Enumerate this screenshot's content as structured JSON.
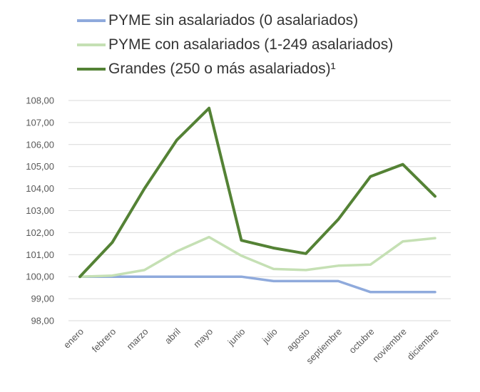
{
  "chart_data": {
    "type": "line",
    "categories": [
      "enero",
      "febrero",
      "marzo",
      "abril",
      "mayo",
      "junio",
      "julio",
      "agosto",
      "septiembre",
      "octubre",
      "noviembre",
      "diciembre"
    ],
    "series": [
      {
        "name": "PYME sin asalariados (0 asalariados)",
        "color": "#8faadc",
        "values": [
          100.0,
          100.0,
          100.0,
          100.0,
          100.0,
          100.0,
          99.8,
          99.8,
          99.8,
          99.3,
          99.3,
          99.3
        ]
      },
      {
        "name": "PYME con asalariados (1-249 asalariados)",
        "color": "#c5e0b4",
        "values": [
          100.0,
          100.05,
          100.3,
          101.15,
          101.8,
          100.95,
          100.35,
          100.3,
          100.5,
          100.55,
          101.6,
          101.75
        ]
      },
      {
        "name": "Grandes (250 o más asalariados)¹",
        "color": "#548235",
        "values": [
          100.0,
          101.55,
          104.0,
          106.2,
          107.65,
          101.65,
          101.3,
          101.05,
          102.6,
          104.55,
          105.1,
          103.65
        ]
      }
    ],
    "y_ticks": [
      "98,00",
      "99,00",
      "100,00",
      "101,00",
      "102,00",
      "103,00",
      "104,00",
      "105,00",
      "106,00",
      "107,00",
      "108,00"
    ],
    "ylim": [
      98,
      108
    ],
    "grid": true,
    "legend_position": "top-left"
  }
}
